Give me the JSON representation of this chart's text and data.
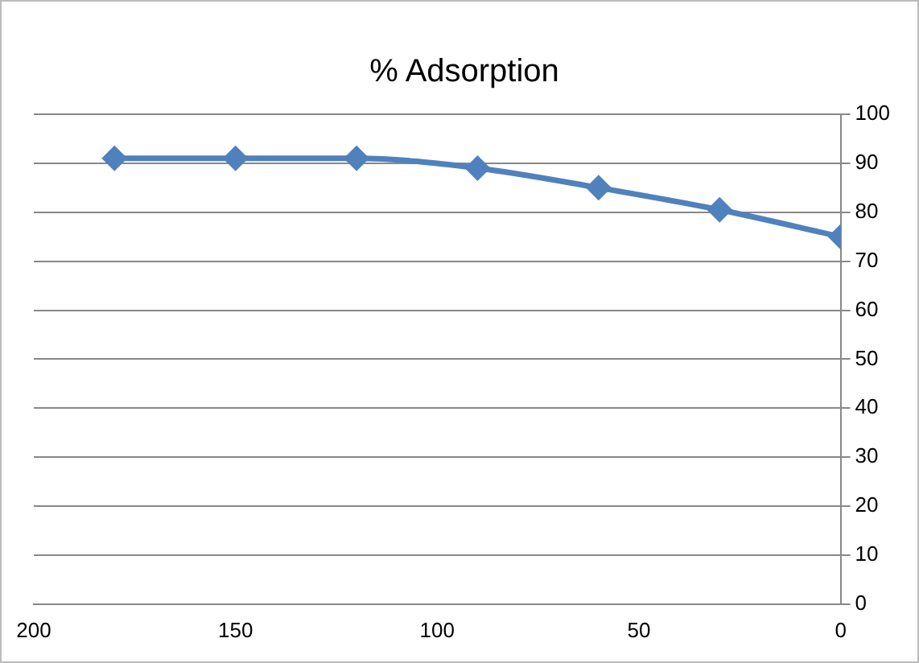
{
  "chart_data": {
    "type": "line",
    "title": "% Adsorption",
    "x": [
      180,
      150,
      120,
      90,
      60,
      30,
      0
    ],
    "series": [
      {
        "color": "#4f81bd",
        "values": [
          91,
          91,
          91,
          89,
          85,
          80.5,
          75
        ]
      }
    ],
    "xlim": [
      200,
      0
    ],
    "xticks": [
      200,
      150,
      100,
      50,
      0
    ],
    "ylim": [
      0,
      100
    ],
    "yticks": [
      0,
      10,
      20,
      30,
      40,
      50,
      60,
      70,
      80,
      90,
      100
    ],
    "grid": "y",
    "legend": false,
    "marker": "diamond",
    "line_style": "solid"
  }
}
